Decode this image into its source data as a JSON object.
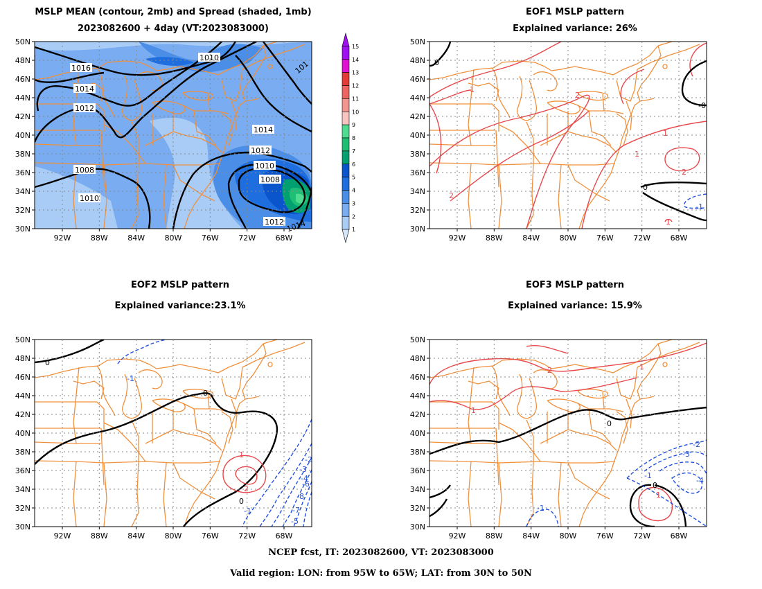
{
  "panels": [
    {
      "id": "mean",
      "title1": "MSLP MEAN (contour, 2mb) and Spread (shaded, 1mb)",
      "title2": "2023082600 + 4day (VT:2023083000)"
    },
    {
      "id": "eof1",
      "title1": "EOF1 MSLP pattern",
      "title2": "Explained variance: 26%"
    },
    {
      "id": "eof2",
      "title1": "EOF2 MSLP pattern",
      "title2": "Explained variance:23.1%"
    },
    {
      "id": "eof3",
      "title1": "EOF3 MSLP pattern",
      "title2": "Explained variance: 15.9%"
    }
  ],
  "axes": {
    "lat_labels": [
      "50N",
      "48N",
      "46N",
      "44N",
      "42N",
      "40N",
      "38N",
      "36N",
      "34N",
      "32N",
      "30N"
    ],
    "lon_labels": [
      "92W",
      "88W",
      "84W",
      "80W",
      "76W",
      "72W",
      "68W"
    ]
  },
  "colorbar": {
    "labels": [
      "1",
      "2",
      "3",
      "4",
      "5",
      "6",
      "7",
      "8",
      "9",
      "10",
      "11",
      "12",
      "13",
      "14",
      "15"
    ],
    "colors": [
      "#d7e7fb",
      "#a9ccf7",
      "#79acf0",
      "#4a8ee8",
      "#1e6ee0",
      "#0b55cc",
      "#00a070",
      "#1fbe75",
      "#50dc90",
      "#f8c4c0",
      "#f49690",
      "#ee6460",
      "#e63a36",
      "#e010d0",
      "#a010f0"
    ]
  },
  "contour_labels": {
    "mean": [
      "1016",
      "1014",
      "1012",
      "1010",
      "1008",
      "1010",
      "1014",
      "1012",
      "1010",
      "1008",
      "1012",
      "1014",
      "101"
    ],
    "eof1": [
      "0",
      "1",
      "2",
      "1",
      "1",
      "2",
      "0",
      "-1",
      "1",
      "-0",
      "2"
    ],
    "eof2": [
      "0",
      "-1",
      "0",
      "1",
      "2",
      "0",
      "-2",
      "-3",
      "-4",
      "-6",
      "-8",
      "-7",
      "-5",
      "-1"
    ],
    "eof3": [
      "1",
      "2",
      "1",
      "0",
      "-2",
      "-3",
      "-4",
      "-1",
      "-1",
      "0",
      "1"
    ]
  },
  "colors": {
    "land": "#f0903c",
    "positive": "#e8484c",
    "negative": "#2050e0",
    "zero": "#000000",
    "grid": "#888888"
  },
  "footer": {
    "line1": "NCEP fcst, IT: 2023082600, VT: 2023083000",
    "line2": "Valid region: LON: from 95W to 65W; LAT: from 30N to 50N"
  }
}
